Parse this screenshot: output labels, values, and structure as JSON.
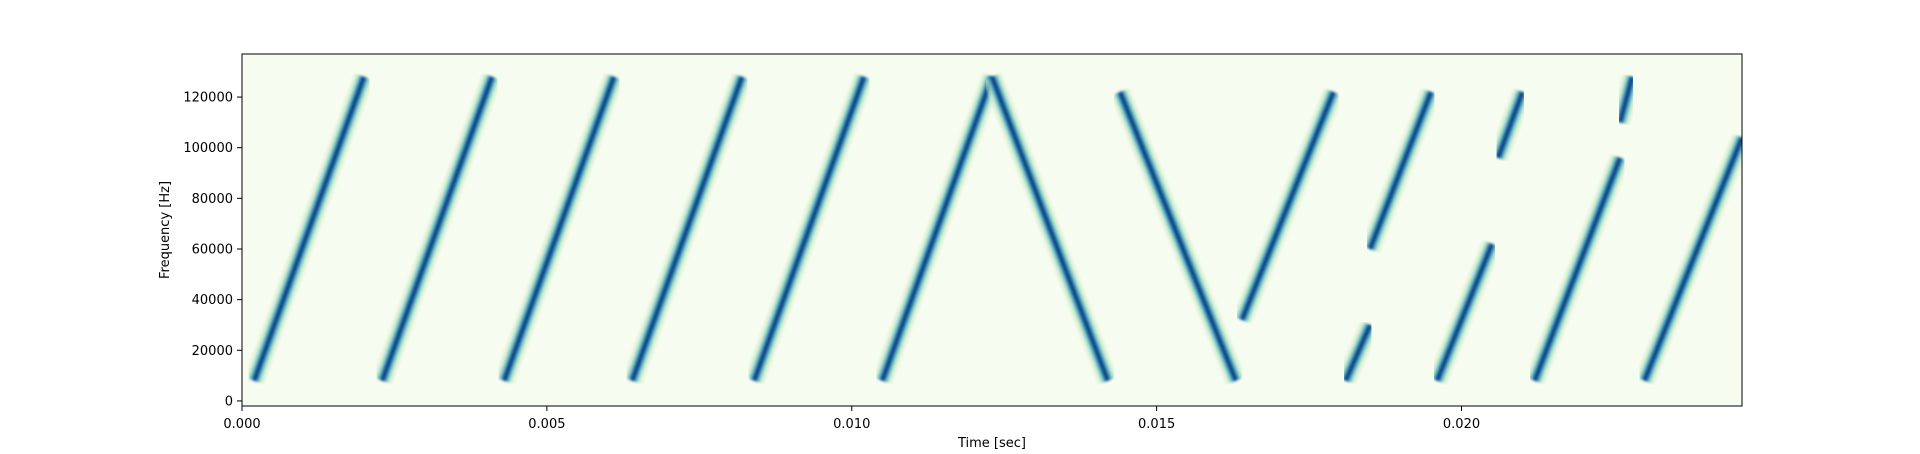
{
  "chart_data": {
    "type": "heatmap",
    "subtype": "spectrogram",
    "title": "",
    "xlabel": "Time [sec]",
    "ylabel": "Frequency [Hz]",
    "xlim": [
      0.0,
      0.0246
    ],
    "ylim": [
      -2000,
      137000
    ],
    "x_ticks": [
      0.0,
      0.005,
      0.01,
      0.015,
      0.02
    ],
    "x_tick_labels": [
      "0.000",
      "0.005",
      "0.010",
      "0.015",
      "0.020"
    ],
    "y_ticks": [
      0,
      20000,
      40000,
      60000,
      80000,
      100000,
      120000
    ],
    "y_tick_labels": [
      "0",
      "20000",
      "40000",
      "60000",
      "80000",
      "100000",
      "120000"
    ],
    "colormap": "GnBu",
    "colors": {
      "low": "#f7fcf0",
      "mid_low": "#ccebc5",
      "mid": "#7bccc4",
      "mid_high": "#2b8cbe",
      "high": "#084081"
    },
    "grid": false,
    "ridges": [
      {
        "t0": 0.0002,
        "f0": 8000,
        "t1": 0.002,
        "f1": 128000
      },
      {
        "t0": 0.0023,
        "f0": 8000,
        "t1": 0.0041,
        "f1": 128000
      },
      {
        "t0": 0.0043,
        "f0": 8000,
        "t1": 0.0061,
        "f1": 128000
      },
      {
        "t0": 0.0064,
        "f0": 8000,
        "t1": 0.0082,
        "f1": 128000
      },
      {
        "t0": 0.0084,
        "f0": 8000,
        "t1": 0.0102,
        "f1": 128000
      },
      {
        "t0": 0.0105,
        "f0": 8000,
        "t1": 0.0123,
        "f1": 128000
      },
      {
        "t0": 0.0123,
        "f0": 128000,
        "t1": 0.0142,
        "f1": 8000
      },
      {
        "t0": 0.0144,
        "f0": 122000,
        "t1": 0.0163,
        "f1": 8000
      },
      {
        "t0": 0.0164,
        "f0": 32000,
        "t1": 0.0179,
        "f1": 122000
      },
      {
        "t0": 0.0181,
        "f0": 8000,
        "t1": 0.0185,
        "f1": 30000
      },
      {
        "t0": 0.0185,
        "f0": 60000,
        "t1": 0.0195,
        "f1": 122000
      },
      {
        "t0": 0.0196,
        "f0": 8000,
        "t1": 0.0205,
        "f1": 62000
      },
      {
        "t0": 0.0206,
        "f0": 96000,
        "t1": 0.021,
        "f1": 122000
      },
      {
        "t0": 0.0212,
        "f0": 8000,
        "t1": 0.0226,
        "f1": 96000
      },
      {
        "t0": 0.0226,
        "f0": 110000,
        "t1": 0.0228,
        "f1": 128000
      },
      {
        "t0": 0.023,
        "f0": 8000,
        "t1": 0.0246,
        "f1": 104000
      }
    ]
  }
}
